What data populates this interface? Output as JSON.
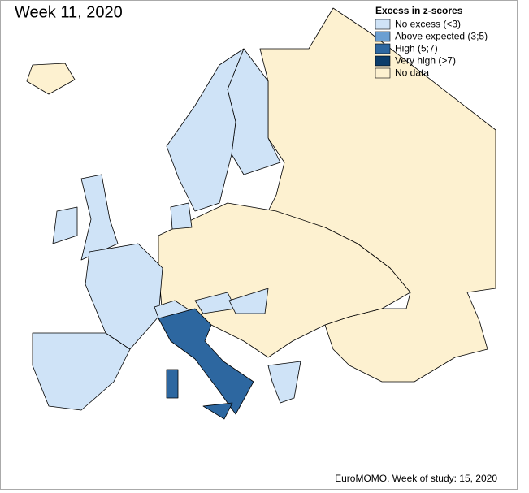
{
  "title": "Week 11, 2020",
  "legend": {
    "title": "Excess in z-scores",
    "items": [
      {
        "label": "No excess (<3)",
        "color": "#cfe3f7"
      },
      {
        "label": "Above expected (3;5)",
        "color": "#6b9fd2"
      },
      {
        "label": "High (5;7)",
        "color": "#2d67a0"
      },
      {
        "label": "Very high (>7)",
        "color": "#0b3c6a"
      },
      {
        "label": "No data",
        "color": "#fdf1d0"
      }
    ]
  },
  "footer": "EuroMOMO. Week of study: 15, 2020"
}
